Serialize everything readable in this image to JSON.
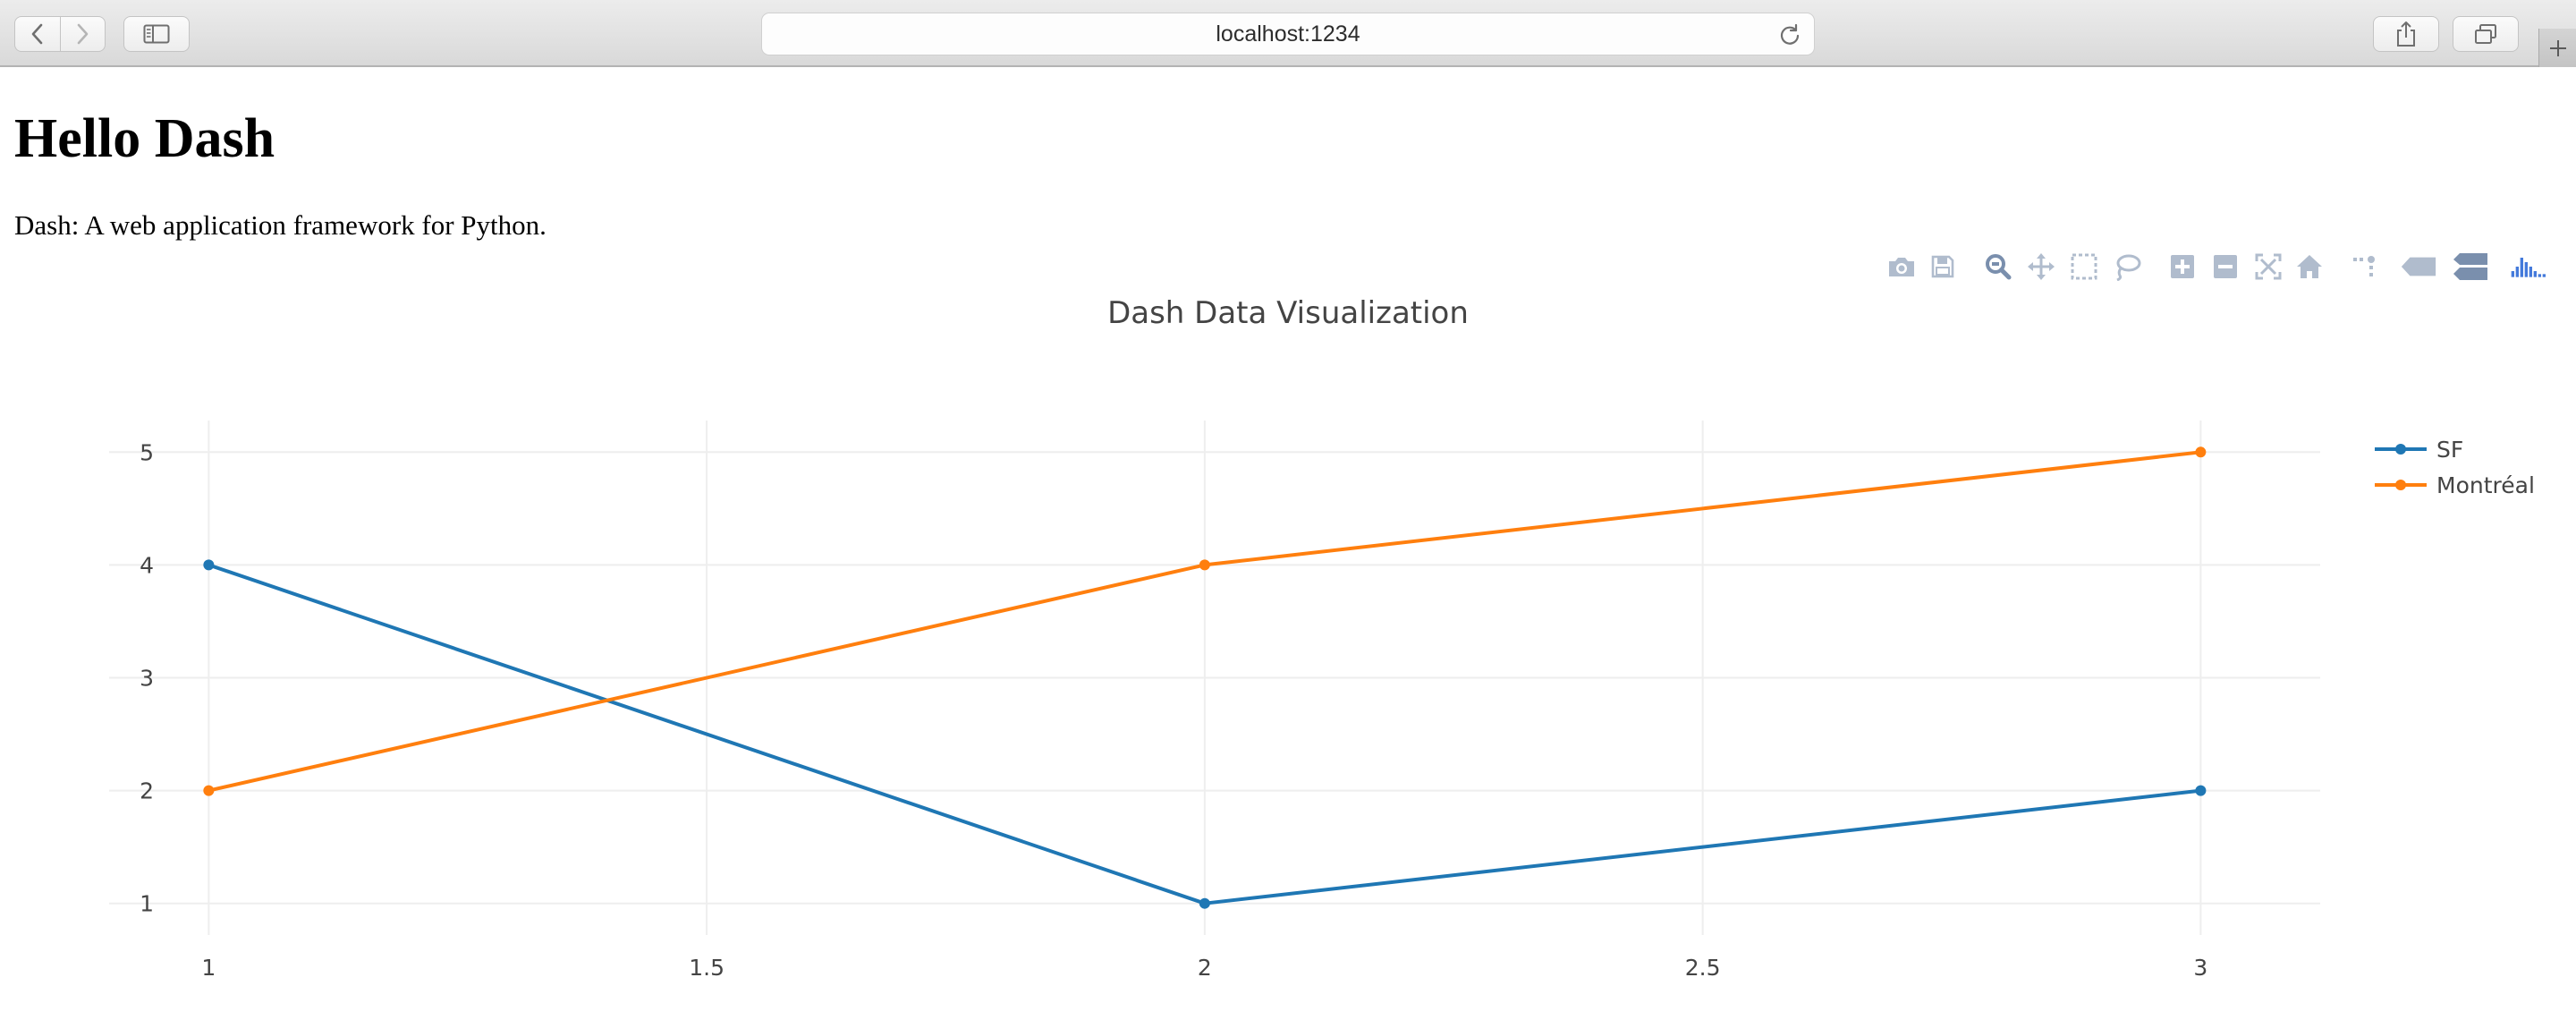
{
  "browser": {
    "url": "localhost:1234"
  },
  "page": {
    "heading": "Hello Dash",
    "subtitle": "Dash: A web application framework for Python."
  },
  "modebar": {
    "buttons": [
      {
        "name": "camera-icon",
        "title": "Download plot as a png"
      },
      {
        "name": "save-icon",
        "title": "Save and edit plot in cloud"
      },
      {
        "name": "zoom-icon",
        "title": "Zoom"
      },
      {
        "name": "pan-icon",
        "title": "Pan"
      },
      {
        "name": "box-select-icon",
        "title": "Box Select"
      },
      {
        "name": "lasso-select-icon",
        "title": "Lasso Select"
      },
      {
        "name": "zoom-in-icon",
        "title": "Zoom in"
      },
      {
        "name": "zoom-out-icon",
        "title": "Zoom out"
      },
      {
        "name": "autoscale-icon",
        "title": "Autoscale"
      },
      {
        "name": "reset-axes-icon",
        "title": "Reset axes"
      },
      {
        "name": "spikelines-icon",
        "title": "Toggle Spike Lines"
      },
      {
        "name": "hover-closest-icon",
        "title": "Show closest data on hover"
      },
      {
        "name": "hover-compare-icon",
        "title": "Compare data on hover"
      },
      {
        "name": "plotly-logo-icon",
        "title": "Produced with Plotly"
      }
    ]
  },
  "colors": {
    "sf": "#1f77b4",
    "montreal": "#ff7f0e",
    "grid": "#eeeeee",
    "modebar_icon": "#b0bccd",
    "modebar_active": "#7a8fad",
    "plotly_logo": "#447adb"
  },
  "chart_data": {
    "type": "line",
    "title": "Dash Data Visualization",
    "xlabel": "",
    "ylabel": "",
    "x_ticks": [
      1,
      1.5,
      2,
      2.5,
      3
    ],
    "x_tick_labels": [
      "1",
      "1.5",
      "2",
      "2.5",
      "3"
    ],
    "y_ticks": [
      1,
      2,
      3,
      4,
      5
    ],
    "y_tick_labels": [
      "1",
      "2",
      "3",
      "4",
      "5"
    ],
    "xlim": [
      0.9,
      3.12
    ],
    "ylim": [
      0.72,
      5.28
    ],
    "grid": true,
    "legend_position": "top-right",
    "series": [
      {
        "name": "SF",
        "x": [
          1,
          2,
          3
        ],
        "y": [
          4,
          1,
          2
        ],
        "color": "#1f77b4"
      },
      {
        "name": "Montréal",
        "x": [
          1,
          2,
          3
        ],
        "y": [
          2,
          4,
          5
        ],
        "color": "#ff7f0e"
      }
    ]
  }
}
